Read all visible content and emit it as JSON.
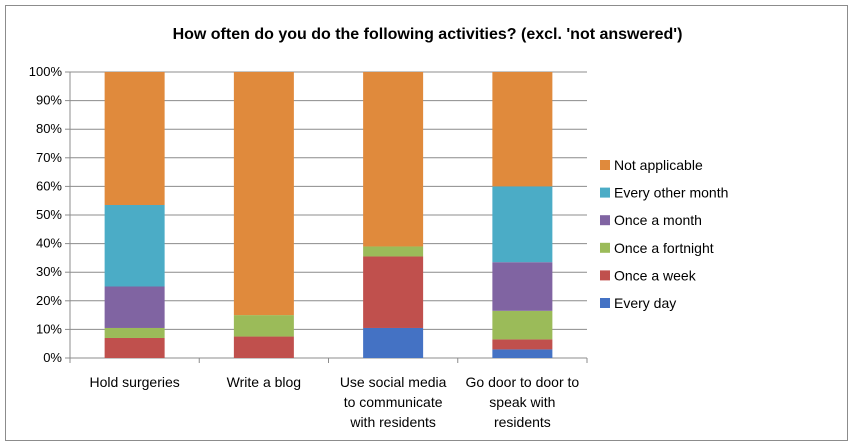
{
  "chart_data": {
    "type": "bar",
    "stacked": true,
    "title": "How often do you do the following activities? (excl. 'not answered')",
    "categories": [
      [
        "Hold surgeries"
      ],
      [
        "Write a blog"
      ],
      [
        "Use social media",
        "to communicate",
        "with residents"
      ],
      [
        "Go door to door to",
        "speak with",
        "residents"
      ]
    ],
    "y_ticks": [
      "0%",
      "10%",
      "20%",
      "30%",
      "40%",
      "50%",
      "60%",
      "70%",
      "80%",
      "90%",
      "100%"
    ],
    "ylim": [
      0,
      100
    ],
    "legend_position": "right",
    "series": [
      {
        "name": "Every day",
        "color": "#4472c4",
        "values": [
          0,
          0,
          10.5,
          3
        ]
      },
      {
        "name": "Once a week",
        "color": "#c0504d",
        "values": [
          7,
          7.5,
          25,
          3.5
        ]
      },
      {
        "name": "Once a fortnight",
        "color": "#9bbb59",
        "values": [
          3.5,
          7.5,
          3.5,
          10
        ]
      },
      {
        "name": "Once a month",
        "color": "#8064a2",
        "values": [
          14.5,
          0,
          0,
          17
        ]
      },
      {
        "name": "Every other month",
        "color": "#4bacc6",
        "values": [
          28.5,
          0,
          0,
          26.5
        ]
      },
      {
        "name": "Not applicable",
        "color": "#e08a3c",
        "values": [
          46.5,
          85,
          61,
          40
        ]
      }
    ]
  }
}
